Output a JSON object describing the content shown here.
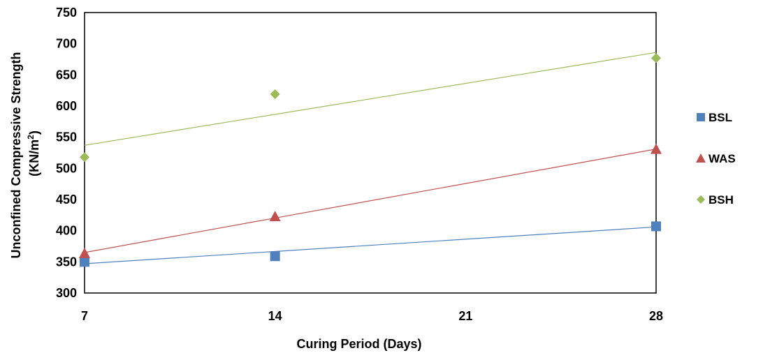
{
  "chart_data": {
    "type": "scatter",
    "xlabel": "Curing Period (Days)",
    "ylabel_line1": "Unconfined Compressive Strength",
    "ylabel_line2_prefix": "(KN/m",
    "ylabel_line2_sup": "2",
    "ylabel_line2_suffix": ")",
    "xlim": [
      7,
      28
    ],
    "ylim": [
      300,
      750
    ],
    "xticks": [
      7,
      14,
      21,
      28
    ],
    "yticks": [
      300,
      350,
      400,
      450,
      500,
      550,
      600,
      650,
      700,
      750
    ],
    "grid": false,
    "legend_position": "right",
    "series": [
      {
        "name": "BSL",
        "marker": "square",
        "color": "#4F81BD",
        "x": [
          7,
          14,
          28
        ],
        "y": [
          350,
          359,
          407
        ],
        "trendline": {
          "x": [
            7,
            28
          ],
          "y": [
            347,
            406
          ]
        }
      },
      {
        "name": "WAS",
        "marker": "triangle",
        "color": "#C0504D",
        "x": [
          7,
          14,
          28
        ],
        "y": [
          364,
          423,
          531
        ],
        "trendline": {
          "x": [
            7,
            28
          ],
          "y": [
            365,
            531
          ]
        }
      },
      {
        "name": "BSH",
        "marker": "diamond",
        "color": "#9BBB59",
        "x": [
          7,
          14,
          28
        ],
        "y": [
          518,
          619,
          677
        ],
        "trendline": {
          "x": [
            7,
            28
          ],
          "y": [
            537,
            686
          ]
        }
      }
    ]
  }
}
